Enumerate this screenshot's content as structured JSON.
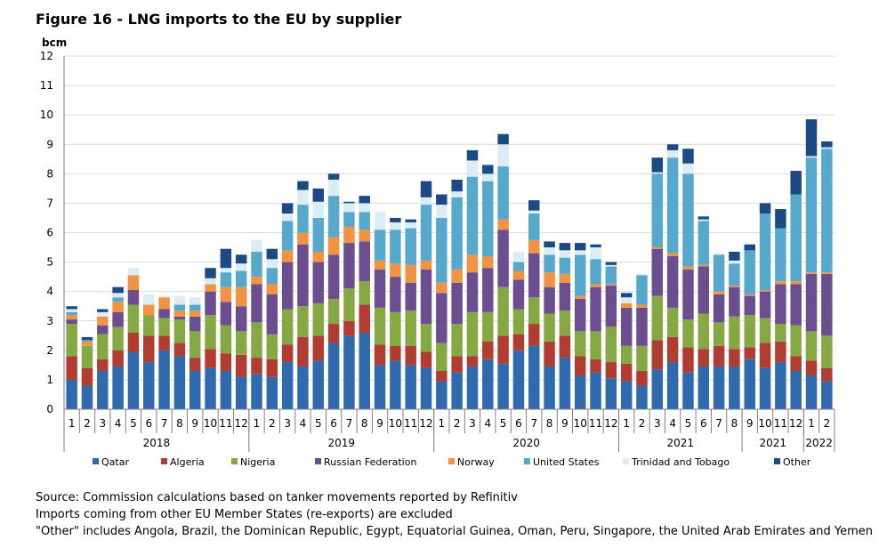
{
  "figure_title": "Figure 16 - LNG imports to the EU by supplier",
  "notes": {
    "source": "Source: Commission calculations based on tanker movements reported by Refinitiv",
    "reexports": "Imports coming from other EU Member States (re-exports) are excluded",
    "other": "\"Other\" includes Angola, Brazil, the Dominican Republic, Egypt, Equatorial Guinea, Oman, Peru, Singapore, the United Arab Emirates and Yemen"
  },
  "chart_data": {
    "type": "bar",
    "stacked": true,
    "title": "Figure 16 - LNG imports to the EU by supplier",
    "ylabel": "bcm",
    "xlabel": "",
    "ylim": [
      0,
      12
    ],
    "yticks": [
      0,
      1,
      2,
      3,
      4,
      5,
      6,
      7,
      8,
      9,
      10,
      11,
      12
    ],
    "grid": true,
    "legend_position": "bottom",
    "categories": [
      "1",
      "2",
      "3",
      "4",
      "5",
      "6",
      "7",
      "8",
      "9",
      "10",
      "11",
      "12",
      "1",
      "2",
      "3",
      "4",
      "5",
      "6",
      "7",
      "8",
      "9",
      "10",
      "11",
      "12",
      "1",
      "2",
      "3",
      "4",
      "5",
      "6",
      "7",
      "8",
      "9",
      "10",
      "11",
      "12",
      "1",
      "2",
      "3",
      "4",
      "5",
      "6",
      "7",
      "8",
      "9",
      "10",
      "11",
      "12",
      "1",
      "2"
    ],
    "year_groups": [
      {
        "label": "2018",
        "start": 0,
        "end": 11
      },
      {
        "label": "2019",
        "start": 12,
        "end": 23
      },
      {
        "label": "2020",
        "start": 24,
        "end": 35
      },
      {
        "label": "2021",
        "start": 36,
        "end": 43
      },
      {
        "label": "2021",
        "start": 44,
        "end": 47
      },
      {
        "label": "2022",
        "start": 48,
        "end": 49
      }
    ],
    "series": [
      {
        "name": "Qatar",
        "color": "#2e6aad",
        "values": [
          1.0,
          0.8,
          1.3,
          1.45,
          1.95,
          1.6,
          2.0,
          1.8,
          1.3,
          1.4,
          1.3,
          1.1,
          1.2,
          1.1,
          1.6,
          1.45,
          1.65,
          2.25,
          2.5,
          2.6,
          1.5,
          1.65,
          1.5,
          1.4,
          0.95,
          1.25,
          1.45,
          1.7,
          1.55,
          2.0,
          2.15,
          1.45,
          1.75,
          1.15,
          1.25,
          1.05,
          0.95,
          0.8,
          1.35,
          1.6,
          1.25,
          1.45,
          1.45,
          1.45,
          1.7,
          1.4,
          1.6,
          1.3,
          1.15,
          0.95
        ]
      },
      {
        "name": "Algeria",
        "color": "#b13c32",
        "values": [
          0.8,
          0.6,
          0.4,
          0.55,
          0.65,
          0.9,
          0.5,
          0.45,
          0.45,
          0.65,
          0.6,
          0.75,
          0.55,
          0.6,
          0.6,
          1.0,
          0.85,
          0.65,
          0.5,
          0.95,
          0.7,
          0.5,
          0.65,
          0.55,
          0.35,
          0.55,
          0.35,
          0.6,
          0.95,
          0.55,
          0.75,
          0.85,
          0.75,
          0.65,
          0.45,
          0.55,
          0.6,
          0.5,
          1.0,
          0.85,
          0.85,
          0.6,
          0.7,
          0.6,
          0.4,
          0.85,
          0.7,
          0.5,
          0.5,
          0.45
        ]
      },
      {
        "name": "Nigeria",
        "color": "#86a843",
        "values": [
          1.1,
          0.75,
          0.85,
          0.8,
          0.95,
          0.7,
          0.6,
          0.8,
          0.9,
          1.15,
          0.95,
          0.8,
          1.2,
          0.85,
          1.2,
          1.05,
          1.1,
          0.85,
          1.1,
          0.8,
          1.25,
          1.15,
          1.2,
          0.95,
          0.95,
          1.1,
          1.5,
          1.0,
          1.65,
          0.85,
          0.9,
          0.95,
          0.85,
          0.85,
          0.95,
          1.2,
          0.6,
          0.85,
          1.5,
          1.0,
          0.95,
          1.2,
          0.8,
          1.1,
          1.1,
          0.85,
          0.6,
          1.05,
          1.0,
          1.1
        ]
      },
      {
        "name": "Russian Federation",
        "color": "#6a4e8f",
        "values": [
          0.15,
          0.0,
          0.3,
          0.5,
          0.5,
          0.0,
          0.3,
          0.1,
          0.5,
          0.8,
          0.8,
          0.85,
          1.3,
          1.35,
          1.6,
          2.1,
          1.4,
          1.5,
          1.55,
          1.35,
          1.3,
          1.2,
          0.95,
          1.85,
          1.7,
          1.4,
          1.35,
          1.5,
          1.95,
          1.0,
          1.5,
          0.9,
          0.95,
          1.1,
          1.5,
          1.4,
          1.3,
          1.3,
          1.6,
          1.75,
          1.7,
          1.6,
          0.95,
          1.0,
          0.65,
          0.9,
          1.35,
          1.4,
          1.95,
          2.1
        ]
      },
      {
        "name": "Norway",
        "color": "#f29343",
        "values": [
          0.15,
          0.15,
          0.3,
          0.35,
          0.5,
          0.35,
          0.4,
          0.2,
          0.2,
          0.25,
          0.5,
          0.65,
          0.25,
          0.35,
          0.4,
          0.4,
          0.35,
          0.6,
          0.55,
          0.4,
          0.3,
          0.45,
          0.6,
          0.3,
          0.35,
          0.45,
          0.6,
          0.4,
          0.35,
          0.3,
          0.45,
          0.5,
          0.3,
          0.1,
          0.1,
          0.05,
          0.15,
          0.1,
          0.05,
          0.1,
          0.1,
          0.05,
          0.1,
          0.05,
          0.05,
          0.05,
          0.1,
          0.1,
          0.05,
          0.05
        ]
      },
      {
        "name": "United States",
        "color": "#56a9cd",
        "values": [
          0.1,
          0.05,
          0.0,
          0.15,
          0.0,
          0.0,
          0.0,
          0.2,
          0.2,
          0.0,
          0.5,
          0.55,
          0.85,
          0.55,
          1.0,
          0.95,
          1.15,
          1.4,
          0.5,
          0.6,
          1.05,
          1.15,
          1.25,
          1.9,
          2.2,
          2.45,
          2.65,
          2.55,
          1.8,
          0.3,
          0.9,
          0.6,
          0.55,
          1.4,
          0.85,
          0.6,
          0.0,
          1.0,
          2.5,
          3.25,
          3.15,
          1.5,
          1.25,
          0.75,
          1.5,
          2.6,
          1.8,
          2.95,
          3.9,
          4.2
        ]
      },
      {
        "name": "Trinidad and Tobago",
        "color": "#dcecf4",
        "values": [
          0.1,
          0.0,
          0.15,
          0.15,
          0.25,
          0.35,
          0.05,
          0.3,
          0.25,
          0.2,
          0.15,
          0.25,
          0.4,
          0.3,
          0.25,
          0.5,
          0.55,
          0.55,
          0.3,
          0.3,
          0.6,
          0.25,
          0.2,
          0.25,
          0.45,
          0.2,
          0.55,
          0.25,
          0.75,
          0.35,
          0.1,
          0.25,
          0.25,
          0.15,
          0.4,
          0.05,
          0.2,
          0.05,
          0.05,
          0.25,
          0.35,
          0.05,
          0.05,
          0.1,
          0.0,
          0.0,
          0.0,
          0.0,
          0.05,
          0.05
        ]
      },
      {
        "name": "Other",
        "color": "#1b4a84",
        "values": [
          0.1,
          0.1,
          0.1,
          0.2,
          0.0,
          0.0,
          0.0,
          0.0,
          0.0,
          0.35,
          0.65,
          0.3,
          0.0,
          0.35,
          0.35,
          0.3,
          0.45,
          0.2,
          0.05,
          0.25,
          0.0,
          0.15,
          0.1,
          0.55,
          0.35,
          0.4,
          0.35,
          0.3,
          0.35,
          0.0,
          0.35,
          0.2,
          0.25,
          0.25,
          0.1,
          0.1,
          0.15,
          0.0,
          0.5,
          0.2,
          0.5,
          0.1,
          0.0,
          0.3,
          0.2,
          0.35,
          0.65,
          0.8,
          1.25,
          0.2
        ]
      }
    ]
  }
}
